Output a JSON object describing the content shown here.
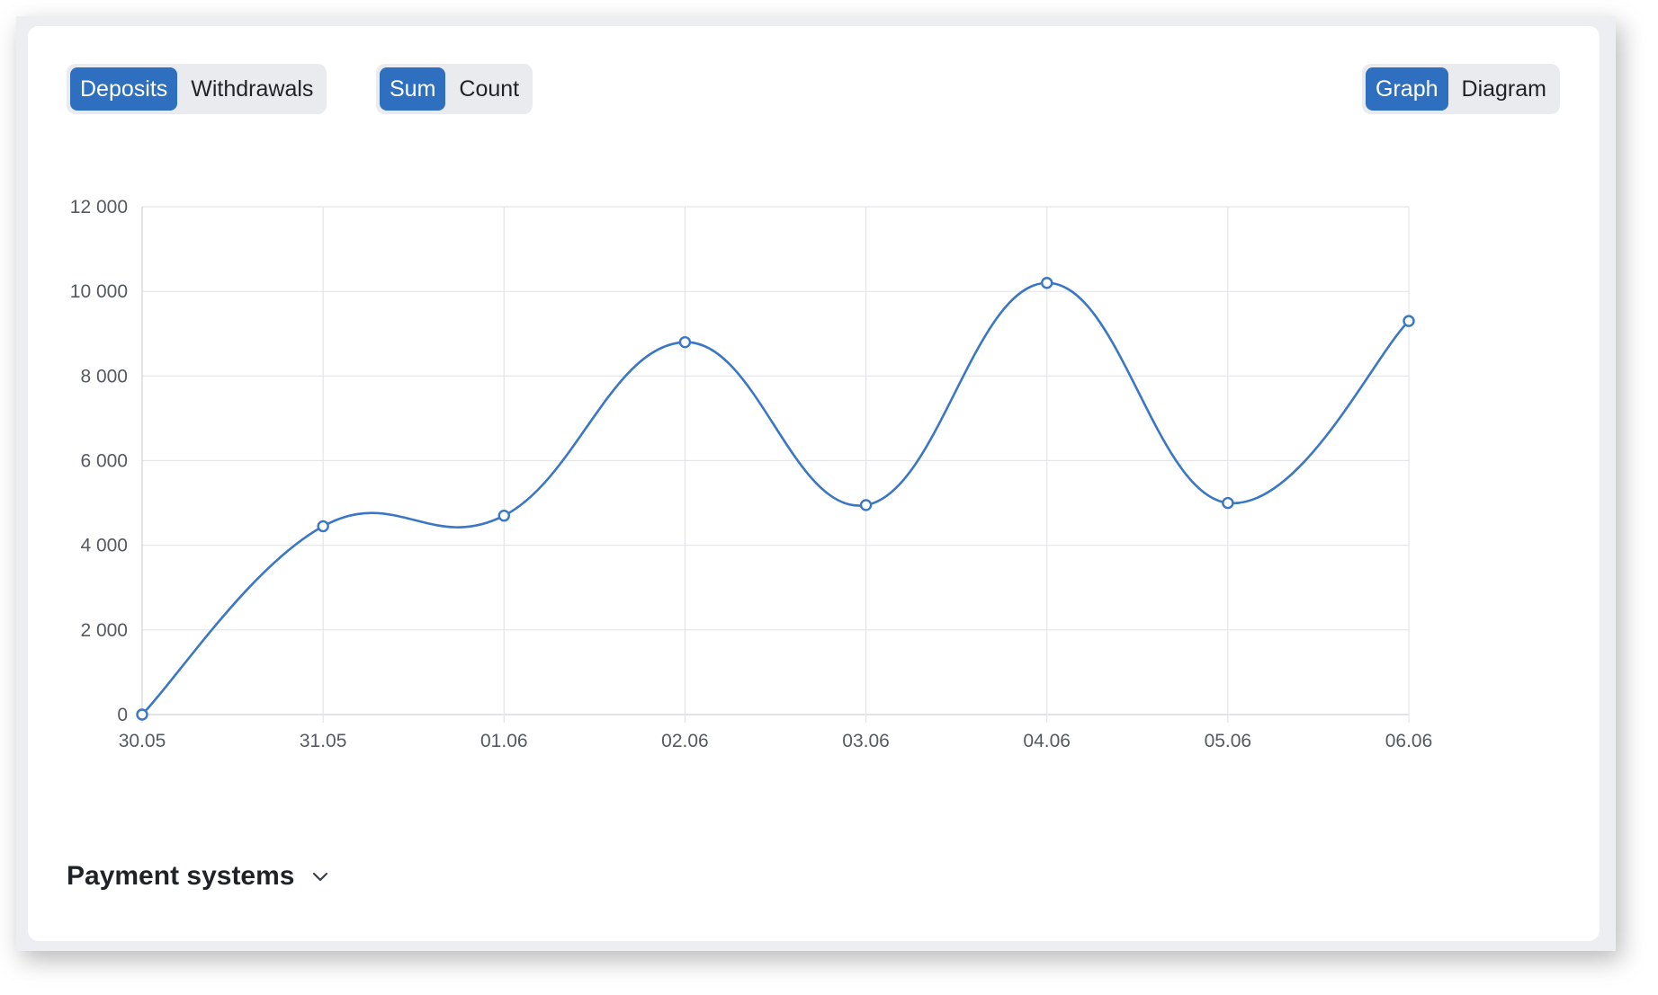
{
  "toggles": {
    "type": {
      "options": [
        "Deposits",
        "Withdrawals"
      ],
      "selected": "Deposits"
    },
    "metric": {
      "options": [
        "Sum",
        "Count"
      ],
      "selected": "Sum"
    },
    "view": {
      "options": [
        "Graph",
        "Diagram"
      ],
      "selected": "Graph"
    }
  },
  "section": {
    "title": "Payment systems",
    "icon": "chevron-down-icon"
  },
  "colors": {
    "accent": "#2f6fc0",
    "line": "#3a77c4",
    "grid": "#e3e5e8"
  },
  "chart_data": {
    "type": "line",
    "categories": [
      "30.05",
      "31.05",
      "01.06",
      "02.06",
      "03.06",
      "04.06",
      "05.06",
      "06.06"
    ],
    "series": [
      {
        "values": [
          0,
          4450,
          4700,
          8800,
          4950,
          10200,
          5000,
          9300
        ]
      }
    ],
    "ylim": [
      0,
      12000
    ],
    "yticks": [
      "0",
      "2 000",
      "4 000",
      "6 000",
      "8 000",
      "10 000",
      "12 000"
    ],
    "title": "",
    "xlabel": "",
    "ylabel": "",
    "grid": true,
    "smooth": true,
    "markers": "hollow-circle"
  }
}
